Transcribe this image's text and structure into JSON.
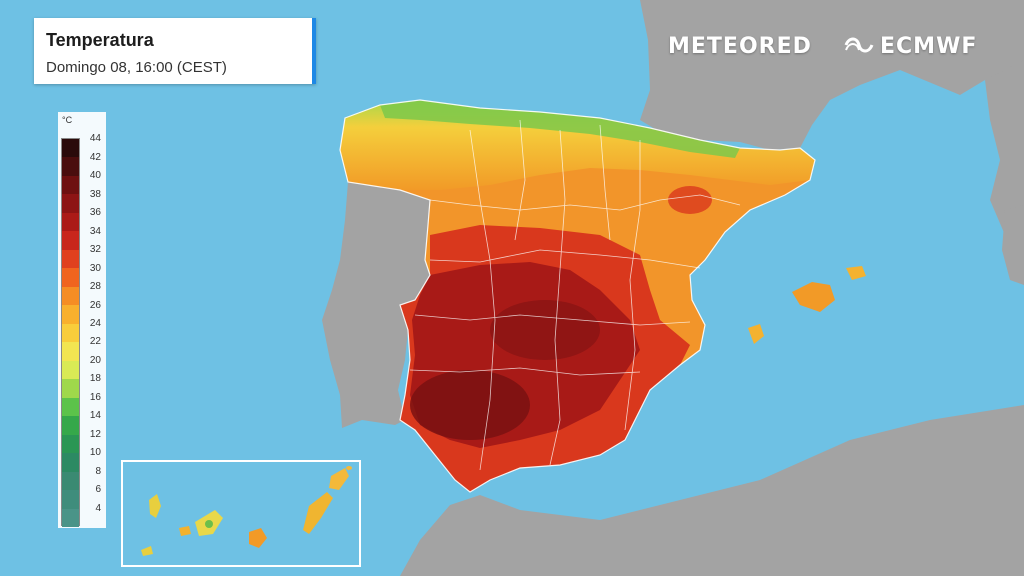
{
  "header": {
    "title": "Temperatura",
    "subtitle": "Domingo 08, 16:00 (CEST)"
  },
  "branding": {
    "meteored": "METEORED",
    "ecmwf": "ECMWF",
    "ecmwf_icon": "ecmwf-swirl-icon"
  },
  "legend": {
    "unit": "°C",
    "ticks": [
      "44",
      "42",
      "40",
      "38",
      "36",
      "34",
      "32",
      "30",
      "28",
      "26",
      "24",
      "22",
      "20",
      "18",
      "16",
      "14",
      "12",
      "10",
      "8",
      "6",
      "4"
    ],
    "colors": [
      "#2a0a0a",
      "#4a0d0d",
      "#6e1010",
      "#8d1414",
      "#ab1a17",
      "#c8261c",
      "#e0401e",
      "#f0641f",
      "#f58d24",
      "#f8b02d",
      "#f8cd3b",
      "#f2e551",
      "#d9ea55",
      "#9fd84b",
      "#5cc34a",
      "#35a84a",
      "#2a9654",
      "#2c8a63",
      "#3a8a72",
      "#3f8d7c",
      "#4a9488"
    ]
  },
  "colors": {
    "sea": "#6ec1e4",
    "land": "#9a9a9a",
    "accent": "#1e88e5"
  }
}
